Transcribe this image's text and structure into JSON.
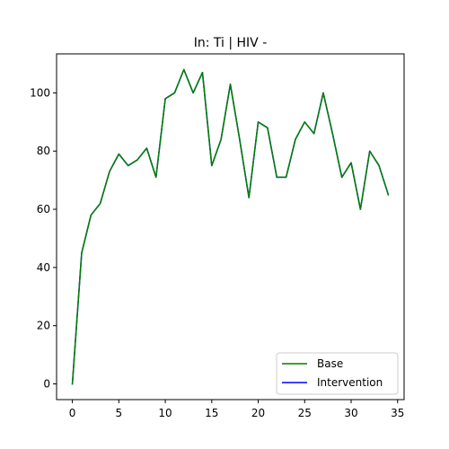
{
  "chart_data": {
    "type": "line",
    "title": "In: Ti | HIV -",
    "xlabel": "",
    "ylabel": "",
    "xlim": [
      -1.7,
      35.7
    ],
    "ylim": [
      -5.4,
      113.4
    ],
    "xticks": [
      0,
      5,
      10,
      15,
      20,
      25,
      30,
      35
    ],
    "yticks": [
      0,
      20,
      40,
      60,
      80,
      100
    ],
    "grid": false,
    "legend_position": "lower right",
    "x": [
      0,
      1,
      2,
      3,
      4,
      5,
      6,
      7,
      8,
      9,
      10,
      11,
      12,
      13,
      14,
      15,
      16,
      17,
      18,
      19,
      20,
      21,
      22,
      23,
      24,
      25,
      26,
      27,
      28,
      29,
      30,
      31,
      32,
      33,
      34
    ],
    "series": [
      {
        "name": "Intervention",
        "color": "#0000ff",
        "values": [
          0,
          45,
          58,
          62,
          73,
          79,
          75,
          77,
          81,
          71,
          98,
          100,
          108,
          100,
          107,
          75,
          84,
          103,
          84,
          64,
          90,
          88,
          71,
          71,
          84,
          90,
          86,
          100,
          86,
          71,
          76,
          60,
          80,
          75,
          65
        ]
      },
      {
        "name": "Base",
        "color": "#007f00",
        "values": [
          0,
          45,
          58,
          62,
          73,
          79,
          75,
          77,
          81,
          71,
          98,
          100,
          108,
          100,
          107,
          75,
          84,
          103,
          84,
          64,
          90,
          88,
          71,
          71,
          84,
          90,
          86,
          100,
          86,
          71,
          76,
          60,
          80,
          75,
          65
        ]
      }
    ],
    "legend": [
      "Base",
      "Intervention"
    ]
  }
}
